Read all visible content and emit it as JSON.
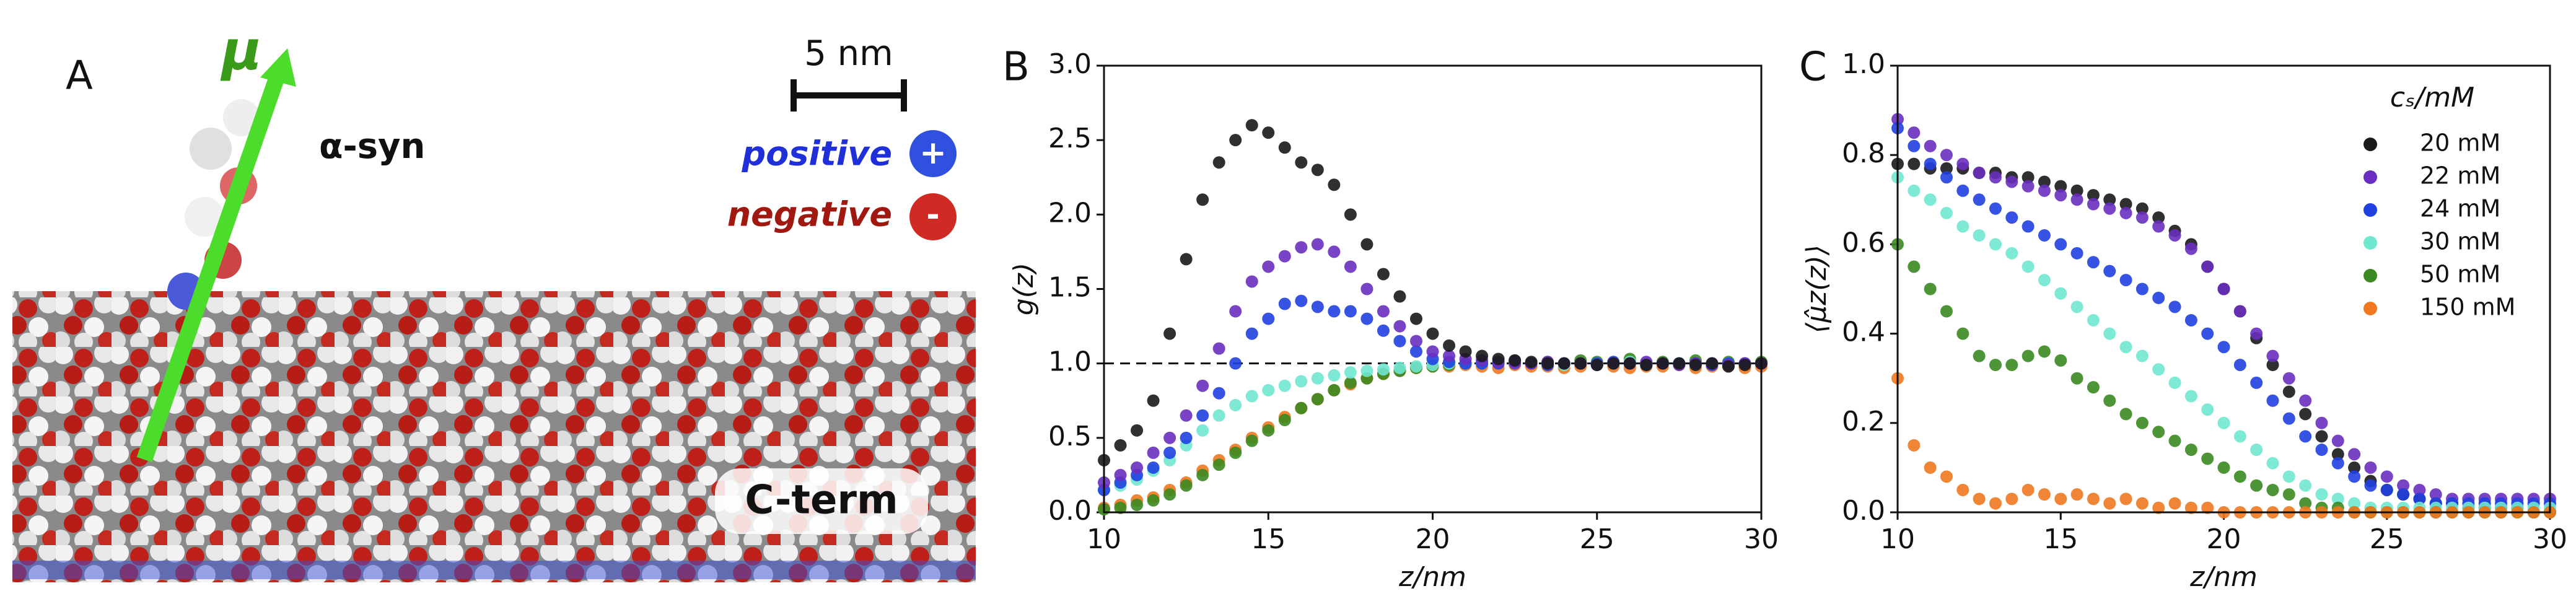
{
  "panel_a": {
    "panel_label": "A",
    "arrow_label": "μ",
    "scale_bar": "5 nm",
    "protein_label": "α-syn",
    "positive": "positive",
    "positive_sign": "+",
    "negative": "negative",
    "negative_sign": "-",
    "region_label": "C-term"
  },
  "chart_data": [
    {
      "type": "scatter",
      "panel_label": "B",
      "x_label": "z/nm",
      "y_label": "g(z)",
      "xlim": [
        10,
        30
      ],
      "xticks": [
        10,
        15,
        20,
        25,
        30
      ],
      "ylim": [
        0,
        3
      ],
      "yticks": [
        {
          "value": 0,
          "label": "0.0"
        },
        {
          "value": 0.5,
          "label": "0.5"
        },
        {
          "value": 1,
          "label": "1.0"
        },
        {
          "value": 1.5,
          "label": "1.5"
        },
        {
          "value": 2,
          "label": "2.0"
        },
        {
          "value": 2.5,
          "label": "2.5"
        },
        {
          "value": 3,
          "label": "3.0"
        }
      ],
      "reference_line": 1,
      "x": [
        10,
        10.5,
        11,
        11.5,
        12,
        12.5,
        13,
        13.5,
        14,
        14.5,
        15,
        15.5,
        16,
        16.5,
        17,
        17.5,
        18,
        18.5,
        19,
        19.5,
        20,
        20.5,
        21,
        21.5,
        22,
        22.5,
        23,
        23.5,
        24,
        24.5,
        25,
        25.5,
        26,
        26.5,
        27,
        27.5,
        28,
        28.5,
        29,
        29.5,
        30
      ],
      "series": [
        {
          "color": "#f07820",
          "values": [
            0.03,
            0.05,
            0.08,
            0.1,
            0.15,
            0.2,
            0.28,
            0.35,
            0.42,
            0.5,
            0.57,
            0.64,
            0.7,
            0.76,
            0.82,
            0.86,
            0.9,
            0.93,
            0.95,
            0.97,
            0.98,
            0.98,
            0.99,
            0.98,
            0.97,
            0.99,
            0.98,
            0.98,
            0.97,
            0.98,
            0.99,
            0.98,
            0.97,
            0.98,
            0.98,
            0.99,
            0.97,
            0.98,
            0.98,
            0.97,
            0.98
          ]
        },
        {
          "color": "#3a8a20",
          "values": [
            0.02,
            0.03,
            0.05,
            0.08,
            0.12,
            0.18,
            0.25,
            0.32,
            0.4,
            0.48,
            0.55,
            0.62,
            0.7,
            0.76,
            0.82,
            0.87,
            0.9,
            0.93,
            0.95,
            0.97,
            0.98,
            0.99,
            1.0,
            1.0,
            1.01,
            1.02,
            1.0,
            1.01,
            1.0,
            1.02,
            1.01,
            1.0,
            1.03,
            1.0,
            1.01,
            1.0,
            1.02,
            1.0,
            1.01,
            1.0,
            1.01
          ]
        },
        {
          "color": "#70e8d0",
          "values": [
            0.15,
            0.18,
            0.22,
            0.28,
            0.35,
            0.45,
            0.55,
            0.65,
            0.72,
            0.78,
            0.82,
            0.85,
            0.88,
            0.9,
            0.92,
            0.94,
            0.95,
            0.96,
            0.97,
            0.98,
            0.99,
            1.0,
            1.0,
            1.0,
            1.01,
            1.0,
            1.0,
            1.0,
            0.99,
            1.0,
            1.0,
            1.0,
            1.01,
            1.0,
            1.0,
            1.0,
            0.99,
            1.0,
            1.0,
            1.0,
            1.0
          ]
        },
        {
          "color": "#2040e0",
          "values": [
            0.15,
            0.2,
            0.25,
            0.3,
            0.4,
            0.5,
            0.65,
            0.8,
            1.0,
            1.2,
            1.3,
            1.4,
            1.42,
            1.38,
            1.35,
            1.35,
            1.3,
            1.22,
            1.15,
            1.08,
            1.03,
            1.01,
            1.0,
            1.0,
            1.0,
            1.01,
            1.0,
            0.99,
            1.0,
            1.0,
            1.0,
            1.01,
            1.0,
            0.99,
            1.0,
            1.0,
            1.0,
            0.99,
            1.0,
            1.0,
            1.0
          ]
        },
        {
          "color": "#6a2fc0",
          "values": [
            0.2,
            0.25,
            0.3,
            0.4,
            0.5,
            0.65,
            0.85,
            1.1,
            1.35,
            1.55,
            1.65,
            1.72,
            1.78,
            1.8,
            1.75,
            1.65,
            1.5,
            1.35,
            1.25,
            1.15,
            1.08,
            1.05,
            1.03,
            1.02,
            1.01,
            1.0,
            1.0,
            1.01,
            1.0,
            1.0,
            0.99,
            1.0,
            1.0,
            1.01,
            1.0,
            0.99,
            1.0,
            1.0,
            0.99,
            1.0,
            1.0
          ]
        },
        {
          "color": "#1a1a1a",
          "values": [
            0.35,
            0.45,
            0.55,
            0.75,
            1.2,
            1.7,
            2.1,
            2.35,
            2.5,
            2.6,
            2.55,
            2.45,
            2.35,
            2.3,
            2.2,
            2.0,
            1.8,
            1.6,
            1.45,
            1.3,
            1.2,
            1.12,
            1.08,
            1.05,
            1.03,
            1.02,
            1.01,
            1.0,
            1.0,
            1.0,
            0.99,
            1.0,
            1.0,
            0.99,
            1.0,
            1.0,
            0.99,
            1.0,
            0.98,
            0.99,
            1.0
          ]
        }
      ]
    },
    {
      "type": "scatter",
      "panel_label": "C",
      "x_label": "z/nm",
      "y_label": "⟨μ̂z(z)⟩",
      "xlim": [
        10,
        30
      ],
      "xticks": [
        10,
        15,
        20,
        25,
        30
      ],
      "ylim": [
        0,
        1
      ],
      "yticks": [
        {
          "value": 0,
          "label": "0.0"
        },
        {
          "value": 0.2,
          "label": "0.2"
        },
        {
          "value": 0.4,
          "label": "0.4"
        },
        {
          "value": 0.6,
          "label": "0.6"
        },
        {
          "value": 0.8,
          "label": "0.8"
        },
        {
          "value": 1,
          "label": "1.0"
        }
      ],
      "legend": "upper right",
      "legend_title": "cₛ/mM",
      "x": [
        10,
        10.5,
        11,
        11.5,
        12,
        12.5,
        13,
        13.5,
        14,
        14.5,
        15,
        15.5,
        16,
        16.5,
        17,
        17.5,
        18,
        18.5,
        19,
        19.5,
        20,
        20.5,
        21,
        21.5,
        22,
        22.5,
        23,
        23.5,
        24,
        24.5,
        25,
        25.5,
        26,
        26.5,
        27,
        27.5,
        28,
        28.5,
        29,
        29.5,
        30
      ],
      "series": [
        {
          "name": "20 mM",
          "color": "#1a1a1a",
          "values": [
            0.78,
            0.78,
            0.77,
            0.77,
            0.77,
            0.76,
            0.76,
            0.75,
            0.75,
            0.74,
            0.73,
            0.72,
            0.71,
            0.7,
            0.69,
            0.68,
            0.66,
            0.63,
            0.6,
            0.55,
            0.5,
            0.45,
            0.39,
            0.33,
            0.27,
            0.22,
            0.17,
            0.13,
            0.1,
            0.07,
            0.05,
            0.04,
            0.03,
            0.02,
            0.02,
            0.01,
            0.01,
            0.01,
            0.01,
            0.0,
            0.0
          ]
        },
        {
          "name": "22 mM",
          "color": "#6a2fc0",
          "values": [
            0.88,
            0.85,
            0.82,
            0.8,
            0.78,
            0.76,
            0.75,
            0.74,
            0.73,
            0.72,
            0.71,
            0.7,
            0.69,
            0.68,
            0.67,
            0.66,
            0.64,
            0.62,
            0.59,
            0.55,
            0.5,
            0.45,
            0.4,
            0.35,
            0.3,
            0.25,
            0.2,
            0.16,
            0.13,
            0.1,
            0.08,
            0.06,
            0.05,
            0.04,
            0.03,
            0.03,
            0.03,
            0.03,
            0.03,
            0.03,
            0.03
          ]
        },
        {
          "name": "24 mM",
          "color": "#2040e0",
          "values": [
            0.86,
            0.82,
            0.78,
            0.75,
            0.72,
            0.7,
            0.68,
            0.66,
            0.64,
            0.62,
            0.6,
            0.58,
            0.56,
            0.54,
            0.52,
            0.5,
            0.48,
            0.46,
            0.43,
            0.4,
            0.37,
            0.33,
            0.29,
            0.25,
            0.21,
            0.17,
            0.14,
            0.11,
            0.08,
            0.06,
            0.05,
            0.04,
            0.03,
            0.02,
            0.02,
            0.02,
            0.02,
            0.02,
            0.02,
            0.02,
            0.02
          ]
        },
        {
          "name": "30 mM",
          "color": "#70e8d0",
          "values": [
            0.75,
            0.72,
            0.7,
            0.67,
            0.64,
            0.62,
            0.6,
            0.58,
            0.55,
            0.52,
            0.49,
            0.46,
            0.43,
            0.4,
            0.37,
            0.35,
            0.32,
            0.29,
            0.26,
            0.23,
            0.2,
            0.17,
            0.14,
            0.11,
            0.08,
            0.06,
            0.04,
            0.03,
            0.02,
            0.01,
            0.01,
            0.01,
            0.01,
            0.01,
            0.01,
            0.01,
            0.01,
            0.01,
            0.01,
            0.01,
            0.01
          ]
        },
        {
          "name": "50 mM",
          "color": "#3a8a20",
          "values": [
            0.6,
            0.55,
            0.5,
            0.45,
            0.4,
            0.35,
            0.33,
            0.33,
            0.35,
            0.36,
            0.34,
            0.3,
            0.28,
            0.25,
            0.22,
            0.2,
            0.18,
            0.16,
            0.14,
            0.12,
            0.1,
            0.08,
            0.06,
            0.05,
            0.04,
            0.02,
            0.01,
            0.01,
            0.0,
            0.0,
            0.0,
            0.0,
            0.0,
            0.0,
            0.0,
            0.0,
            0.0,
            0.0,
            0.0,
            0.0,
            0.0
          ]
        },
        {
          "name": "150 mM",
          "color": "#f07820",
          "values": [
            0.3,
            0.15,
            0.1,
            0.08,
            0.05,
            0.03,
            0.02,
            0.03,
            0.05,
            0.04,
            0.03,
            0.04,
            0.03,
            0.02,
            0.03,
            0.02,
            0.01,
            0.02,
            0.01,
            0.01,
            0.0,
            0.0,
            0.0,
            0.0,
            0.0,
            0.0,
            0.0,
            0.0,
            0.0,
            0.0,
            0.0,
            0.0,
            0.0,
            0.0,
            0.0,
            0.0,
            0.0,
            0.0,
            0.0,
            0.0,
            0.0
          ]
        }
      ]
    }
  ]
}
